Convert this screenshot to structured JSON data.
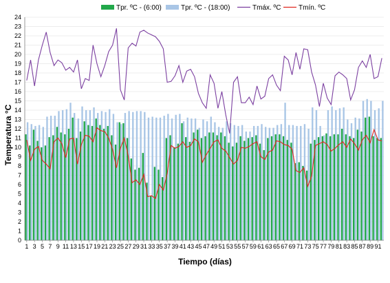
{
  "chart_data": {
    "type": "bar",
    "xlabel": "Tiempo (días)",
    "ylabel": "Temperatura °C",
    "ylim": [
      0,
      24
    ],
    "y_ticks": [
      0,
      1,
      2,
      3,
      4,
      5,
      6,
      7,
      8,
      9,
      10,
      11,
      12,
      13,
      14,
      15,
      16,
      17,
      18,
      19,
      20,
      21,
      22,
      23,
      24
    ],
    "grid": true,
    "legend_position": "top",
    "x": [
      1,
      2,
      3,
      4,
      5,
      6,
      7,
      8,
      9,
      10,
      11,
      12,
      13,
      14,
      15,
      16,
      17,
      18,
      19,
      20,
      21,
      22,
      23,
      24,
      25,
      26,
      27,
      28,
      29,
      30,
      31,
      32,
      33,
      34,
      35,
      36,
      37,
      38,
      39,
      40,
      41,
      42,
      43,
      44,
      45,
      46,
      47,
      48,
      49,
      50,
      51,
      52,
      53,
      54,
      55,
      56,
      57,
      58,
      59,
      60,
      61,
      62,
      63,
      64,
      65,
      66,
      67,
      68,
      69,
      70,
      71,
      72,
      73,
      74,
      75,
      76,
      77,
      78,
      79,
      80,
      81,
      82,
      83,
      84,
      85,
      86,
      87,
      88,
      89,
      90,
      91,
      92
    ],
    "x_tick_labels": [
      "1",
      "3",
      "5",
      "7",
      "9",
      "11",
      "13",
      "15",
      "17",
      "19",
      "21",
      "23",
      "25",
      "27",
      "29",
      "31",
      "33",
      "35",
      "37",
      "39",
      "41",
      "43",
      "45",
      "47",
      "49",
      "51",
      "53",
      "55",
      "57",
      "59",
      "61",
      "63",
      "65",
      "67",
      "69",
      "71",
      "73",
      "75",
      "77",
      "79",
      "81",
      "83",
      "85",
      "87",
      "89",
      "91"
    ],
    "series": [
      {
        "name": "Tpr. ºC - (6:00)",
        "style": "bar",
        "color": "#22a84a",
        "values": [
          11.4,
          10.2,
          11.9,
          10.7,
          10.0,
          10.2,
          11.1,
          11.3,
          12.2,
          11.6,
          11.4,
          12.0,
          13.2,
          11.0,
          11.7,
          12.8,
          12.4,
          12.3,
          13.1,
          12.4,
          12.0,
          12.3,
          11.3,
          10.3,
          12.7,
          12.6,
          11.0,
          8.8,
          7.6,
          7.8,
          9.4,
          6.2,
          4.8,
          7.9,
          7.6,
          6.8,
          11.0,
          11.3,
          10.0,
          10.4,
          12.6,
          11.1,
          10.6,
          11.6,
          11.9,
          11.0,
          11.2,
          11.6,
          11.6,
          11.3,
          11.6,
          11.2,
          10.5,
          10.1,
          10.5,
          11.2,
          10.7,
          11.0,
          11.1,
          11.3,
          10.4,
          9.7,
          11.0,
          11.2,
          11.4,
          11.4,
          11.2,
          10.8,
          10.5,
          8.3,
          8.4,
          8.0,
          7.5,
          10.4,
          10.8,
          11.1,
          11.2,
          11.5,
          11.2,
          11.4,
          11.4,
          12.0,
          11.4,
          11.2,
          11.0,
          11.9,
          11.7,
          13.2,
          13.3,
          11.2,
          11.0,
          11.0
        ]
      },
      {
        "name": "Tpr. ºC - (18:00)",
        "style": "bar",
        "color": "#a9c6e6",
        "values": [
          12.7,
          12.5,
          12.3,
          12.4,
          12.2,
          13.3,
          13.4,
          13.4,
          13.9,
          14.0,
          14.1,
          14.8,
          13.7,
          13.1,
          14.4,
          14.0,
          14.0,
          14.3,
          13.7,
          13.9,
          13.8,
          14.1,
          13.6,
          12.7,
          12.5,
          13.7,
          13.9,
          13.8,
          13.9,
          13.9,
          13.8,
          13.2,
          13.3,
          13.2,
          13.2,
          13.4,
          13.6,
          13.1,
          13.5,
          13.6,
          12.8,
          13.2,
          13.1,
          13.1,
          12.1,
          13.0,
          12.8,
          13.3,
          12.7,
          12.2,
          12.1,
          12.8,
          12.6,
          12.4,
          12.3,
          12.4,
          11.7,
          11.7,
          12.3,
          12.3,
          12.5,
          12.2,
          12.1,
          12.1,
          12.4,
          12.5,
          14.8,
          12.4,
          12.4,
          12.3,
          12.3,
          12.5,
          12.0,
          14.3,
          14.0,
          12.3,
          11.3,
          14.0,
          14.4,
          14.0,
          14.2,
          14.3,
          13.0,
          12.6,
          13.2,
          13.1,
          15.0,
          15.2,
          15.0,
          14.0,
          14.2,
          15.0
        ]
      },
      {
        "name": "Tmáx. ºC",
        "style": "line",
        "color": "#7b3fa0",
        "values": [
          17.2,
          19.4,
          16.6,
          19.4,
          21.0,
          22.4,
          20.2,
          18.8,
          19.4,
          19.1,
          18.3,
          18.6,
          18.1,
          19.4,
          16.3,
          17.4,
          17.2,
          21.0,
          19.0,
          17.6,
          18.8,
          20.3,
          21.0,
          22.8,
          16.2,
          15.1,
          20.7,
          21.2,
          20.9,
          22.4,
          22.6,
          22.3,
          22.1,
          21.9,
          21.4,
          20.6,
          17.0,
          17.1,
          17.7,
          18.8,
          17.0,
          18.2,
          18.4,
          17.6,
          15.8,
          14.8,
          14.2,
          17.8,
          16.9,
          14.2,
          16.0,
          13.5,
          11.5,
          17.0,
          17.6,
          14.8,
          14.8,
          15.4,
          14.6,
          16.6,
          15.2,
          15.5,
          17.4,
          17.8,
          16.7,
          16.1,
          19.8,
          19.4,
          17.8,
          20.2,
          18.4,
          20.6,
          20.5,
          18.1,
          16.7,
          14.4,
          16.9,
          15.3,
          14.6,
          17.7,
          18.1,
          17.8,
          17.4,
          15.1,
          16.2,
          18.6,
          19.3,
          18.6,
          20.0,
          17.4,
          17.6,
          19.6
        ]
      },
      {
        "name": "Tmín. ºC",
        "style": "line",
        "color": "#e0261f",
        "values": [
          10.8,
          8.6,
          9.8,
          10.1,
          8.6,
          8.2,
          7.7,
          10.6,
          11.0,
          10.4,
          8.9,
          10.9,
          11.0,
          8.2,
          10.3,
          11.3,
          11.2,
          10.6,
          12.1,
          11.8,
          11.7,
          11.0,
          9.8,
          7.8,
          9.9,
          11.0,
          9.1,
          6.2,
          6.5,
          6.0,
          7.1,
          4.7,
          4.8,
          4.5,
          6.0,
          5.4,
          7.2,
          10.2,
          9.9,
          10.1,
          10.6,
          10.0,
          10.2,
          10.9,
          10.6,
          8.4,
          9.2,
          9.9,
          10.6,
          10.8,
          9.9,
          9.6,
          8.9,
          8.2,
          8.6,
          10.0,
          9.9,
          10.1,
          10.4,
          10.6,
          9.0,
          8.7,
          9.5,
          9.7,
          10.7,
          10.6,
          10.3,
          10.2,
          9.8,
          7.5,
          7.3,
          7.8,
          5.8,
          6.9,
          10.2,
          10.4,
          10.6,
          10.3,
          9.6,
          9.9,
          10.3,
          10.6,
          10.0,
          10.9,
          10.4,
          9.7,
          10.8,
          11.3,
          10.5,
          11.9,
          10.8,
          10.7
        ]
      }
    ]
  }
}
